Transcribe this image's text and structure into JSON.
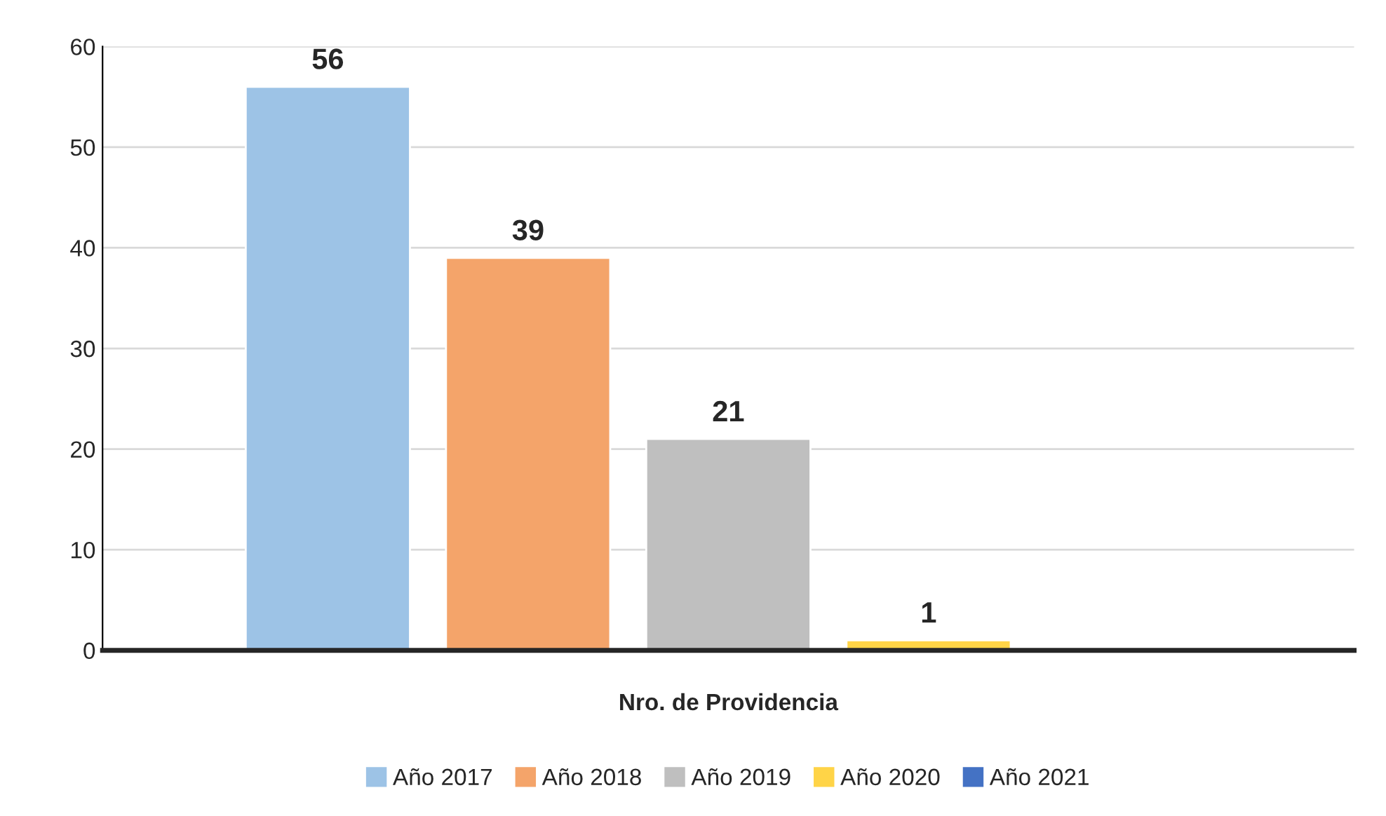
{
  "chart_data": {
    "type": "bar",
    "categories": [
      "Nro. de Providencia"
    ],
    "series": [
      {
        "name": "Año 2017",
        "color": "#9dc3e6",
        "values": [
          56
        ],
        "value_labels": [
          "56"
        ]
      },
      {
        "name": "Año 2018",
        "color": "#f4a46a",
        "values": [
          39
        ],
        "value_labels": [
          "39"
        ]
      },
      {
        "name": "Año 2019",
        "color": "#bfbfbf",
        "values": [
          21
        ],
        "value_labels": [
          "21"
        ]
      },
      {
        "name": "Año 2020",
        "color": "#ffd447",
        "values": [
          1
        ],
        "value_labels": [
          "1"
        ]
      },
      {
        "name": "Año 2021",
        "color": "#4472c4",
        "values": [
          null
        ],
        "value_labels": [
          null
        ]
      }
    ],
    "ylim": [
      0,
      60
    ],
    "yticks": [
      0,
      10,
      20,
      30,
      40,
      50,
      60
    ],
    "grid": "y",
    "legend": "bottom"
  }
}
